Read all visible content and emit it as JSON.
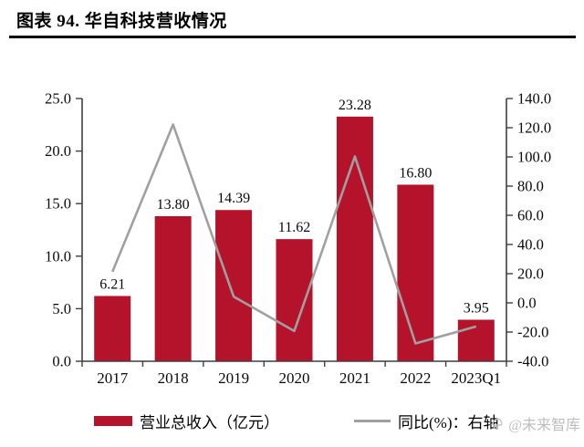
{
  "page": {
    "title": "图表 94. 华自科技营收情况",
    "watermark": {
      "icon": "logo-icon",
      "text": "@未来智库"
    }
  },
  "chart_data": {
    "type": "bar",
    "subtype": "bar-line-combo",
    "title": "华自科技营收情况",
    "categories": [
      "2017",
      "2018",
      "2019",
      "2020",
      "2021",
      "2022",
      "2023Q1"
    ],
    "series": [
      {
        "name": "营业总收入（亿元）",
        "type": "bar",
        "axis": "left",
        "color": "#B5122B",
        "values": [
          6.21,
          13.8,
          14.39,
          11.62,
          23.28,
          16.8,
          3.95
        ],
        "data_labels": [
          "6.21",
          "13.80",
          "14.39",
          "11.62",
          "23.28",
          "16.80",
          "3.95"
        ]
      },
      {
        "name": "同比(%)：右轴",
        "type": "line",
        "axis": "right",
        "color": "#A0A0A0",
        "values": [
          21.3,
          122.2,
          4.3,
          -19.3,
          100.3,
          -27.8,
          -16.2
        ]
      }
    ],
    "left_axis": {
      "min": 0,
      "max": 25,
      "step": 5,
      "tick_labels": [
        "0.0",
        "5.0",
        "10.0",
        "15.0",
        "20.0",
        "25.0"
      ]
    },
    "right_axis": {
      "min": -40,
      "max": 140,
      "step": 20,
      "tick_labels": [
        "-40.0",
        "-20.0",
        "0.0",
        "20.0",
        "40.0",
        "60.0",
        "80.0",
        "100.0",
        "120.0",
        "140.0"
      ]
    },
    "grid": false,
    "legend_position": "bottom",
    "axis_color": "#3f3f3f"
  }
}
